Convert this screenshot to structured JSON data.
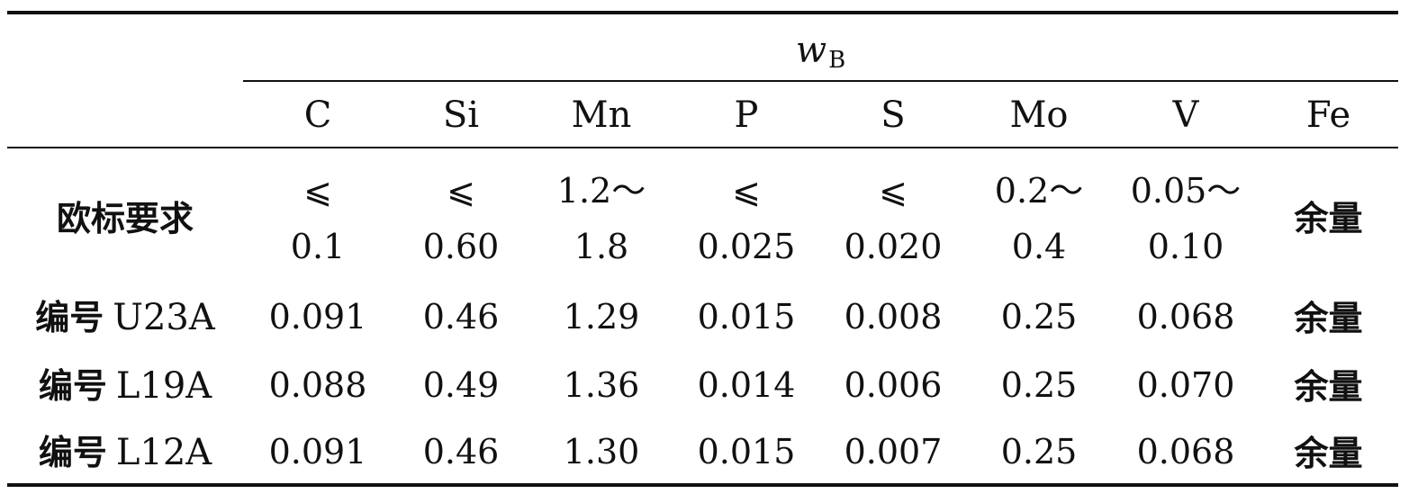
{
  "table": {
    "group_label": "w",
    "group_label_sub": "B",
    "columns": [
      "C",
      "Si",
      "Mn",
      "P",
      "S",
      "Mo",
      "V",
      "Fe"
    ],
    "rows": [
      {
        "label": "欧标要求",
        "code": "",
        "cells": [
          [
            "⩽",
            "0.1"
          ],
          [
            "⩽",
            "0.60"
          ],
          [
            "1.2～",
            "1.8"
          ],
          [
            "⩽",
            "0.025"
          ],
          [
            "⩽",
            "0.020"
          ],
          [
            "0.2～",
            "0.4"
          ],
          [
            "0.05～",
            "0.10"
          ],
          [
            "余量"
          ]
        ]
      },
      {
        "label": "编号",
        "code": "U23A",
        "cells": [
          [
            "0.091"
          ],
          [
            "0.46"
          ],
          [
            "1.29"
          ],
          [
            "0.015"
          ],
          [
            "0.008"
          ],
          [
            "0.25"
          ],
          [
            "0.068"
          ],
          [
            "余量"
          ]
        ]
      },
      {
        "label": "编号",
        "code": "L19A",
        "cells": [
          [
            "0.088"
          ],
          [
            "0.49"
          ],
          [
            "1.36"
          ],
          [
            "0.014"
          ],
          [
            "0.006"
          ],
          [
            "0.25"
          ],
          [
            "0.070"
          ],
          [
            "余量"
          ]
        ]
      },
      {
        "label": "编号",
        "code": "L12A",
        "cells": [
          [
            "0.091"
          ],
          [
            "0.46"
          ],
          [
            "1.30"
          ],
          [
            "0.015"
          ],
          [
            "0.007"
          ],
          [
            "0.25"
          ],
          [
            "0.068"
          ],
          [
            "余量"
          ]
        ]
      }
    ]
  }
}
